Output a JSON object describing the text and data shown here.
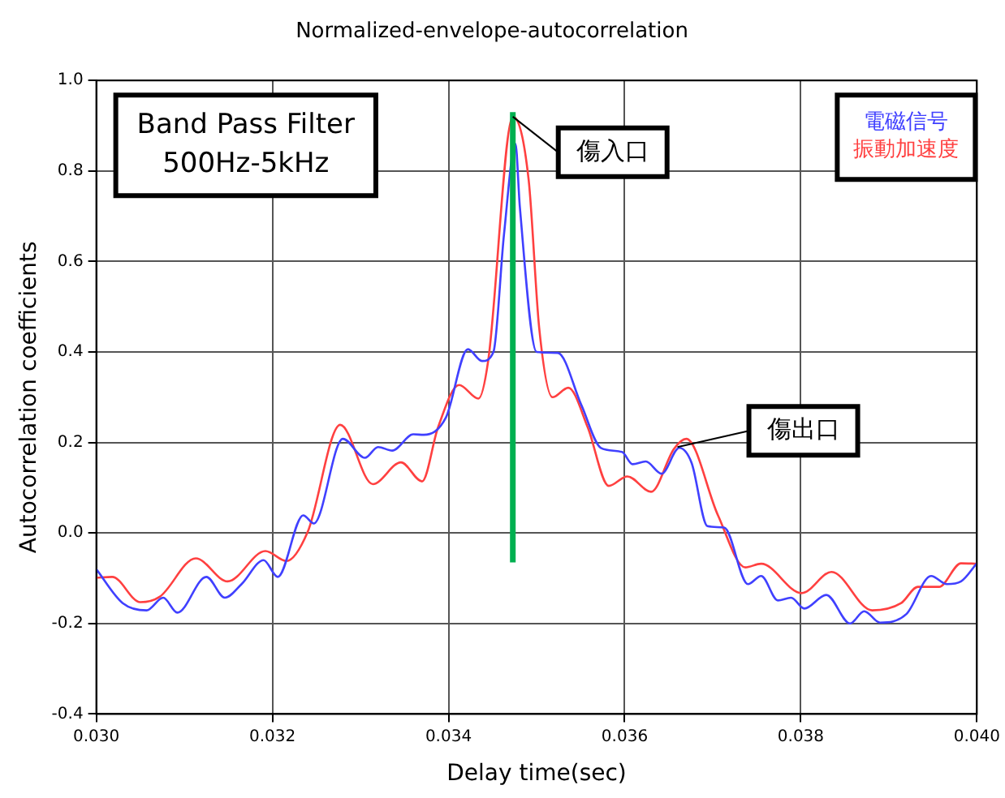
{
  "chart_data": {
    "type": "line",
    "title": "Normalized-envelope-autocorrelation",
    "xlabel": "Delay time(sec)",
    "ylabel": "Autocorrelation coefficients",
    "xlim": [
      0.03,
      0.04
    ],
    "xticks": [
      {
        "value": 0.03,
        "label": "0.030"
      },
      0.032,
      0.034,
      0.036,
      0.038,
      {
        "value": 0.04,
        "label": "0.040"
      }
    ],
    "ylim": [
      -0.4,
      1.0
    ],
    "yticks": [
      -0.4,
      -0.2,
      {
        "value": 0,
        "label": "0.0"
      },
      0.2,
      0.4,
      0.6,
      0.8,
      {
        "value": 1.0,
        "label": "1.0"
      }
    ],
    "grid": true,
    "legend": "top right",
    "marker": "none",
    "line_style": "solid",
    "series": [
      {
        "name": "電磁信号",
        "color": "#4040ff",
        "x": [
          0.03,
          0.0303,
          0.03057,
          0.03076,
          0.03092,
          0.03125,
          0.03146,
          0.03165,
          0.0319,
          0.03206,
          0.03235,
          0.03247,
          0.0328,
          0.03305,
          0.0332,
          0.03336,
          0.0336,
          0.03372,
          0.03397,
          0.03422,
          0.03438,
          0.03451,
          0.03463,
          0.03476,
          0.03481,
          0.035,
          0.03524,
          0.03551,
          0.03573,
          0.03597,
          0.03609,
          0.03624,
          0.03642,
          0.03662,
          0.03676,
          0.03694,
          0.03713,
          0.0374,
          0.03755,
          0.03774,
          0.03789,
          0.03804,
          0.03829,
          0.03856,
          0.03872,
          0.0389,
          0.0392,
          0.03948,
          0.03966,
          0.03982,
          0.04
        ],
        "values": [
          -0.08,
          -0.155,
          -0.171,
          -0.143,
          -0.176,
          -0.097,
          -0.143,
          -0.113,
          -0.06,
          -0.097,
          0.039,
          0.021,
          0.208,
          0.166,
          0.19,
          0.182,
          0.218,
          0.217,
          0.255,
          0.406,
          0.38,
          0.4,
          0.66,
          0.86,
          0.72,
          0.4,
          0.398,
          0.282,
          0.188,
          0.179,
          0.152,
          0.158,
          0.131,
          0.188,
          0.155,
          0.015,
          0.012,
          -0.113,
          -0.095,
          -0.149,
          -0.143,
          -0.167,
          -0.137,
          -0.2,
          -0.173,
          -0.198,
          -0.179,
          -0.095,
          -0.113,
          -0.107,
          -0.067
        ]
      },
      {
        "name": "振動加速度",
        "color": "#ff4040",
        "x": [
          0.03,
          0.03018,
          0.0305,
          0.03072,
          0.03113,
          0.03149,
          0.03192,
          0.03216,
          0.0324,
          0.03277,
          0.03314,
          0.03346,
          0.0337,
          0.03388,
          0.03412,
          0.03434,
          0.03445,
          0.03473,
          0.03491,
          0.03503,
          0.03518,
          0.03536,
          0.03558,
          0.03582,
          0.03603,
          0.0363,
          0.03656,
          0.0367,
          0.03706,
          0.03737,
          0.03755,
          0.03801,
          0.03835,
          0.03881,
          0.03914,
          0.03933,
          0.03957,
          0.03982,
          0.04
        ],
        "values": [
          -0.099,
          -0.097,
          -0.153,
          -0.141,
          -0.056,
          -0.107,
          -0.04,
          -0.062,
          0.002,
          0.239,
          0.108,
          0.156,
          0.114,
          0.233,
          0.327,
          0.297,
          0.38,
          0.92,
          0.78,
          0.452,
          0.3,
          0.321,
          0.234,
          0.104,
          0.125,
          0.091,
          0.186,
          0.208,
          0.039,
          -0.076,
          -0.068,
          -0.133,
          -0.086,
          -0.171,
          -0.155,
          -0.119,
          -0.119,
          -0.067,
          -0.068
        ]
      },
      {
        "color": "#00b050",
        "x": [
          0.03473,
          0.03473
        ],
        "values": [
          -0.065,
          0.93
        ]
      }
    ],
    "annotations": [
      "Band Pass Filter",
      "500Hz-5kHz",
      {
        "text": "傷入口",
        "x": 0.03473,
        "y": 0.92
      },
      {
        "text": "傷出口",
        "x": 0.0366,
        "y": 0.19
      }
    ]
  }
}
